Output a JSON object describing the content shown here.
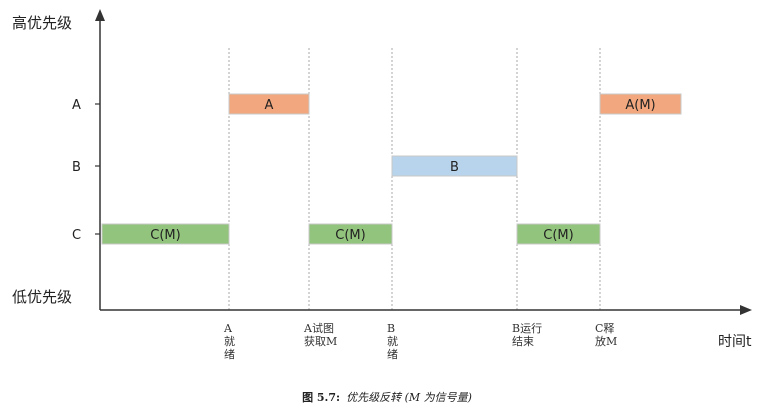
{
  "diagram": {
    "y_top_label": "高优先级",
    "y_bottom_label": "低优先级",
    "x_label": "时间t",
    "levels": [
      {
        "key": "A",
        "label": "A"
      },
      {
        "key": "B",
        "label": "B"
      },
      {
        "key": "C",
        "label": "C"
      }
    ],
    "bars": [
      {
        "level": "C",
        "label": "C(M)",
        "start": 0,
        "end": 1,
        "color": "#92c47d"
      },
      {
        "level": "A",
        "label": "A",
        "start": 1,
        "end": 2,
        "color": "#f2a77e"
      },
      {
        "level": "C",
        "label": "C(M)",
        "start": 2,
        "end": 3,
        "color": "#92c47d"
      },
      {
        "level": "B",
        "label": "B",
        "start": 3,
        "end": 4,
        "color": "#b8d4ec"
      },
      {
        "level": "C",
        "label": "C(M)",
        "start": 4,
        "end": 5,
        "color": "#92c47d"
      },
      {
        "level": "A",
        "label": "A(M)",
        "start": 5,
        "end": 6,
        "color": "#f2a77e"
      }
    ],
    "events": [
      {
        "t": 1,
        "lines": [
          "A",
          "就",
          "绪"
        ]
      },
      {
        "t": 2,
        "lines": [
          "A试图",
          "获取M"
        ]
      },
      {
        "t": 3,
        "lines": [
          "B",
          "就",
          "绪"
        ]
      },
      {
        "t": 4,
        "lines": [
          "B运行",
          "结束"
        ]
      },
      {
        "t": 5,
        "lines": [
          "C释",
          "放M"
        ]
      }
    ]
  },
  "caption": {
    "figure": "图 5.7:",
    "text": "优先级反转 (M 为信号量)"
  }
}
